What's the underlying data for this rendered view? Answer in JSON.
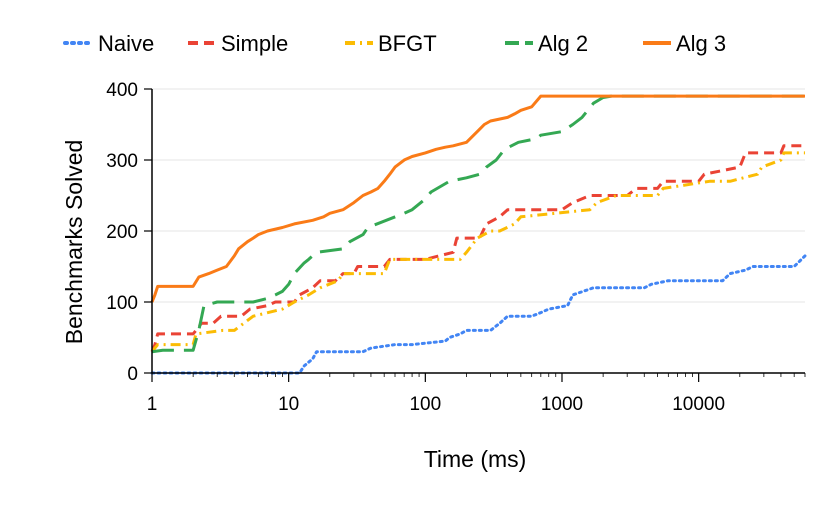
{
  "chart_data": {
    "type": "line",
    "title": "",
    "xlabel": "Time (ms)",
    "ylabel": "Benchmarks Solved",
    "xscale": "log",
    "xlim": [
      1,
      60000
    ],
    "ylim": [
      0,
      400
    ],
    "xticks": [
      {
        "value": 1,
        "label": "1"
      },
      {
        "value": 10,
        "label": "10"
      },
      {
        "value": 100,
        "label": "100"
      },
      {
        "value": 1000,
        "label": "1000"
      },
      {
        "value": 10000,
        "label": "10000"
      }
    ],
    "yticks": [
      {
        "value": 0,
        "label": "0"
      },
      {
        "value": 100,
        "label": "100"
      },
      {
        "value": 200,
        "label": "200"
      },
      {
        "value": 300,
        "label": "300"
      },
      {
        "value": 400,
        "label": "400"
      }
    ],
    "gridlines": "horizontal",
    "legend_position": "top",
    "series": [
      {
        "name": "Naive",
        "color": "#4285f4",
        "dash": "dotted",
        "x": [
          1,
          12,
          13,
          15,
          16,
          35,
          40,
          60,
          80,
          140,
          150,
          180,
          200,
          300,
          350,
          400,
          600,
          700,
          800,
          1100,
          1200,
          1700,
          1800,
          4000,
          4500,
          6000,
          7000,
          15000,
          17000,
          22000,
          25000,
          50000,
          60000
        ],
        "y": [
          0,
          0,
          10,
          20,
          30,
          30,
          35,
          40,
          40,
          45,
          50,
          55,
          60,
          60,
          70,
          80,
          80,
          85,
          90,
          95,
          110,
          120,
          120,
          120,
          125,
          130,
          130,
          130,
          140,
          145,
          150,
          150,
          165
        ]
      },
      {
        "name": "Simple",
        "color": "#ea4335",
        "dash": "dashed",
        "x": [
          1,
          1.05,
          1.1,
          2,
          2.1,
          2.3,
          2.8,
          3.2,
          4.5,
          5.2,
          7,
          8,
          11,
          12,
          15,
          17,
          22,
          25,
          30,
          32,
          50,
          55,
          90,
          100,
          160,
          170,
          250,
          280,
          350,
          400,
          1000,
          1200,
          1600,
          2000,
          3000,
          3500,
          5000,
          5500,
          10000,
          11000,
          20000,
          22000,
          40000,
          42000,
          60000
        ],
        "y": [
          30,
          40,
          55,
          55,
          60,
          70,
          70,
          80,
          80,
          90,
          95,
          100,
          100,
          110,
          120,
          130,
          130,
          140,
          140,
          150,
          150,
          160,
          160,
          160,
          170,
          190,
          190,
          210,
          220,
          230,
          230,
          240,
          250,
          250,
          250,
          260,
          260,
          270,
          270,
          280,
          290,
          310,
          310,
          320,
          320
        ]
      },
      {
        "name": "BFGT",
        "color": "#fbbc04",
        "dash": "dashdot",
        "x": [
          1,
          1.1,
          2,
          2.1,
          3.3,
          4,
          5.5,
          9,
          11,
          14,
          17,
          23,
          25,
          50,
          55,
          180,
          200,
          240,
          300,
          350,
          450,
          500,
          1600,
          1800,
          2500,
          3000,
          5000,
          5500,
          12000,
          17000,
          27000,
          29000,
          40000,
          42000,
          60000
        ],
        "y": [
          30,
          40,
          40,
          55,
          60,
          60,
          80,
          90,
          100,
          110,
          120,
          130,
          140,
          140,
          160,
          160,
          170,
          190,
          200,
          200,
          210,
          220,
          230,
          240,
          250,
          250,
          250,
          260,
          270,
          270,
          280,
          290,
          300,
          310,
          310
        ]
      },
      {
        "name": "Alg 2",
        "color": "#34a853",
        "dash": "longdash",
        "x": [
          1,
          1.2,
          2,
          2.2,
          2.4,
          3,
          5.5,
          7,
          8,
          9,
          10,
          11,
          13,
          14,
          16,
          25,
          28,
          35,
          38,
          70,
          80,
          100,
          110,
          150,
          200,
          250,
          280,
          330,
          380,
          480,
          650,
          700,
          1000,
          1200,
          1400,
          1700,
          2000,
          2300,
          60000
        ],
        "y": [
          30,
          32,
          32,
          60,
          95,
          100,
          100,
          105,
          110,
          115,
          125,
          140,
          155,
          160,
          170,
          175,
          185,
          195,
          205,
          225,
          230,
          245,
          255,
          270,
          275,
          280,
          290,
          300,
          315,
          325,
          330,
          335,
          340,
          350,
          360,
          380,
          388,
          390,
          390
        ]
      },
      {
        "name": "Alg 3",
        "color": "#fa7b17",
        "dash": "solid",
        "x": [
          1,
          1.05,
          1.1,
          2,
          2.2,
          2.6,
          3,
          3.5,
          4,
          4.3,
          5,
          5.5,
          6,
          7,
          9,
          11,
          15,
          18,
          20,
          25,
          30,
          35,
          40,
          45,
          50,
          55,
          60,
          70,
          80,
          100,
          120,
          140,
          160,
          200,
          240,
          270,
          300,
          400,
          450,
          500,
          600,
          700,
          60000
        ],
        "y": [
          100,
          110,
          122,
          122,
          135,
          140,
          145,
          150,
          165,
          175,
          185,
          190,
          195,
          200,
          205,
          210,
          215,
          220,
          225,
          230,
          240,
          250,
          255,
          260,
          270,
          280,
          290,
          300,
          305,
          310,
          315,
          318,
          320,
          325,
          340,
          350,
          355,
          360,
          365,
          370,
          375,
          390,
          390
        ]
      }
    ]
  }
}
